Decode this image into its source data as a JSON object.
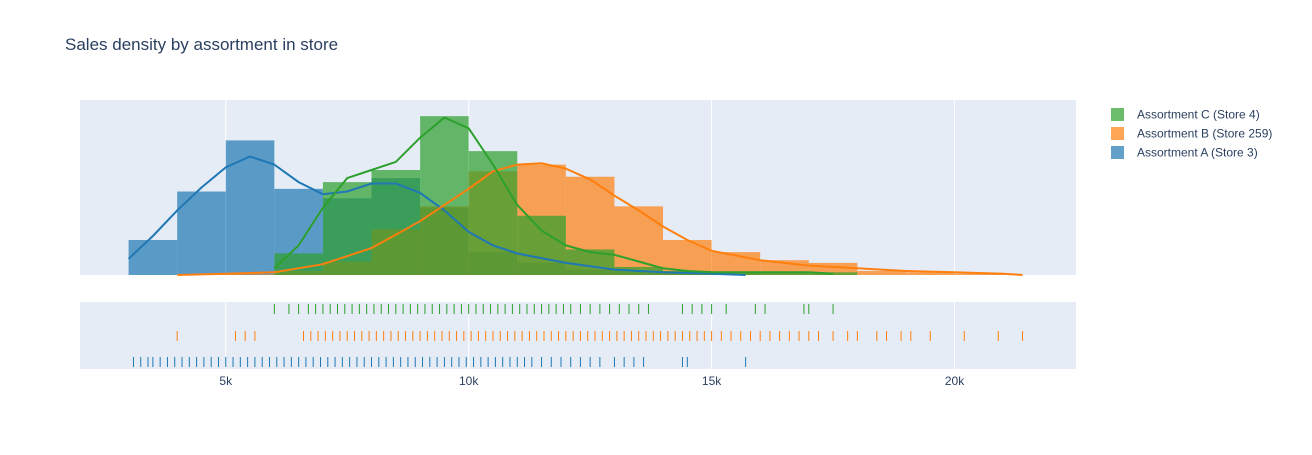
{
  "chart_data": {
    "type": "histogram",
    "title": "Sales density by assortment in store",
    "xlabel": "",
    "ylabel": "",
    "xlim": [
      2000,
      22500
    ],
    "x_ticks": [
      5000,
      10000,
      15000,
      20000
    ],
    "x_tick_labels": [
      "5k",
      "10k",
      "15k",
      "20k"
    ],
    "legend_position": "right",
    "grid": true,
    "plot_bg": "#e5ecf6",
    "series": [
      {
        "name": "Assortment A (Store 3)",
        "color": "#1f77b4",
        "bins": [
          {
            "x0": 3000,
            "x1": 4000,
            "height": 0.26
          },
          {
            "x0": 4000,
            "x1": 5000,
            "height": 0.62
          },
          {
            "x0": 5000,
            "x1": 6000,
            "height": 1.0
          },
          {
            "x0": 6000,
            "x1": 7000,
            "height": 0.64
          },
          {
            "x0": 7000,
            "x1": 8000,
            "height": 0.57
          },
          {
            "x0": 8000,
            "x1": 9000,
            "height": 0.72
          },
          {
            "x0": 9000,
            "x1": 10000,
            "height": 0.5
          },
          {
            "x0": 10000,
            "x1": 11000,
            "height": 0.17
          },
          {
            "x0": 11000,
            "x1": 12000,
            "height": 0.09
          },
          {
            "x0": 12000,
            "x1": 13000,
            "height": 0.04
          },
          {
            "x0": 13000,
            "x1": 14000,
            "height": 0.03
          },
          {
            "x0": 14000,
            "x1": 15000,
            "height": 0.02
          },
          {
            "x0": 15000,
            "x1": 16000,
            "height": 0.01
          }
        ],
        "kde": [
          [
            3000,
            0.12
          ],
          [
            3500,
            0.29
          ],
          [
            4000,
            0.48
          ],
          [
            4500,
            0.65
          ],
          [
            5000,
            0.8
          ],
          [
            5500,
            0.88
          ],
          [
            6000,
            0.82
          ],
          [
            6500,
            0.69
          ],
          [
            7000,
            0.6
          ],
          [
            7500,
            0.62
          ],
          [
            8000,
            0.68
          ],
          [
            8500,
            0.68
          ],
          [
            9000,
            0.61
          ],
          [
            9500,
            0.48
          ],
          [
            10000,
            0.32
          ],
          [
            10500,
            0.22
          ],
          [
            11000,
            0.16
          ],
          [
            12000,
            0.09
          ],
          [
            13000,
            0.04
          ],
          [
            14000,
            0.02
          ],
          [
            15000,
            0.01
          ],
          [
            15700,
            0.0
          ]
        ],
        "rug": [
          3100,
          3250,
          3400,
          3500,
          3650,
          3800,
          3950,
          4100,
          4250,
          4400,
          4550,
          4700,
          4850,
          5000,
          5150,
          5300,
          5450,
          5600,
          5750,
          5900,
          6050,
          6200,
          6350,
          6500,
          6650,
          6800,
          6950,
          7100,
          7250,
          7400,
          7550,
          7700,
          7850,
          8000,
          8150,
          8300,
          8450,
          8600,
          8750,
          8900,
          9050,
          9200,
          9350,
          9500,
          9650,
          9800,
          9950,
          10100,
          10250,
          10400,
          10550,
          10700,
          10850,
          11000,
          11150,
          11300,
          11500,
          11700,
          11900,
          12100,
          12300,
          12500,
          12700,
          13000,
          13200,
          13400,
          13600,
          14400,
          14500,
          15700
        ]
      },
      {
        "name": "Assortment B (Store 259)",
        "color": "#ff7f0e",
        "bins": [
          {
            "x0": 4000,
            "x1": 5000,
            "height": 0.005
          },
          {
            "x0": 5000,
            "x1": 6000,
            "height": 0.005
          },
          {
            "x0": 6000,
            "x1": 7000,
            "height": 0.03
          },
          {
            "x0": 7000,
            "x1": 8000,
            "height": 0.1
          },
          {
            "x0": 8000,
            "x1": 9000,
            "height": 0.34
          },
          {
            "x0": 9000,
            "x1": 10000,
            "height": 0.51
          },
          {
            "x0": 10000,
            "x1": 11000,
            "height": 0.77
          },
          {
            "x0": 11000,
            "x1": 12000,
            "height": 0.82
          },
          {
            "x0": 12000,
            "x1": 13000,
            "height": 0.73
          },
          {
            "x0": 13000,
            "x1": 14000,
            "height": 0.51
          },
          {
            "x0": 14000,
            "x1": 15000,
            "height": 0.26
          },
          {
            "x0": 15000,
            "x1": 16000,
            "height": 0.17
          },
          {
            "x0": 16000,
            "x1": 17000,
            "height": 0.11
          },
          {
            "x0": 17000,
            "x1": 18000,
            "height": 0.09
          },
          {
            "x0": 18000,
            "x1": 19000,
            "height": 0.03
          },
          {
            "x0": 19000,
            "x1": 20000,
            "height": 0.02
          },
          {
            "x0": 20000,
            "x1": 21000,
            "height": 0.01
          }
        ],
        "kde": [
          [
            4000,
            0.0
          ],
          [
            5000,
            0.01
          ],
          [
            6000,
            0.02
          ],
          [
            7000,
            0.08
          ],
          [
            8000,
            0.2
          ],
          [
            9000,
            0.4
          ],
          [
            10000,
            0.64
          ],
          [
            10500,
            0.77
          ],
          [
            11000,
            0.82
          ],
          [
            11500,
            0.83
          ],
          [
            12000,
            0.79
          ],
          [
            12500,
            0.71
          ],
          [
            13000,
            0.59
          ],
          [
            13500,
            0.48
          ],
          [
            14000,
            0.36
          ],
          [
            14500,
            0.26
          ],
          [
            15000,
            0.18
          ],
          [
            16000,
            0.11
          ],
          [
            17000,
            0.07
          ],
          [
            18000,
            0.05
          ],
          [
            19000,
            0.03
          ],
          [
            20000,
            0.02
          ],
          [
            21000,
            0.01
          ],
          [
            21400,
            0.0
          ]
        ],
        "rug": [
          4000,
          5200,
          5400,
          5600,
          6600,
          6750,
          6900,
          7050,
          7200,
          7350,
          7500,
          7650,
          7800,
          7950,
          8100,
          8250,
          8400,
          8550,
          8700,
          8850,
          9000,
          9150,
          9300,
          9450,
          9600,
          9750,
          9900,
          10050,
          10200,
          10350,
          10500,
          10650,
          10800,
          10950,
          11100,
          11250,
          11400,
          11550,
          11700,
          11850,
          12000,
          12150,
          12300,
          12450,
          12600,
          12750,
          12900,
          13050,
          13200,
          13350,
          13500,
          13650,
          13800,
          13950,
          14100,
          14250,
          14400,
          14550,
          14700,
          14850,
          15000,
          15200,
          15400,
          15600,
          15800,
          16000,
          16200,
          16400,
          16600,
          16800,
          17000,
          17200,
          17500,
          17800,
          18000,
          18400,
          18600,
          18900,
          19100,
          19500,
          20200,
          20900,
          21400
        ]
      },
      {
        "name": "Assortment C (Store 4)",
        "color": "#2ca02c",
        "bins": [
          {
            "x0": 6000,
            "x1": 7000,
            "height": 0.16
          },
          {
            "x0": 7000,
            "x1": 8000,
            "height": 0.69
          },
          {
            "x0": 8000,
            "x1": 9000,
            "height": 0.78
          },
          {
            "x0": 9000,
            "x1": 10000,
            "height": 1.18
          },
          {
            "x0": 10000,
            "x1": 11000,
            "height": 0.92
          },
          {
            "x0": 11000,
            "x1": 12000,
            "height": 0.44
          },
          {
            "x0": 12000,
            "x1": 13000,
            "height": 0.19
          },
          {
            "x0": 13000,
            "x1": 14000,
            "height": 0.06
          },
          {
            "x0": 14000,
            "x1": 15000,
            "height": 0.03
          },
          {
            "x0": 15000,
            "x1": 16000,
            "height": 0.02
          },
          {
            "x0": 16000,
            "x1": 17000,
            "height": 0.02
          },
          {
            "x0": 17000,
            "x1": 18000,
            "height": 0.02
          }
        ],
        "kde": [
          [
            6000,
            0.05
          ],
          [
            6500,
            0.22
          ],
          [
            7000,
            0.5
          ],
          [
            7500,
            0.72
          ],
          [
            8000,
            0.78
          ],
          [
            8500,
            0.84
          ],
          [
            9000,
            1.02
          ],
          [
            9500,
            1.17
          ],
          [
            10000,
            1.09
          ],
          [
            10500,
            0.82
          ],
          [
            11000,
            0.52
          ],
          [
            11500,
            0.33
          ],
          [
            12000,
            0.22
          ],
          [
            12500,
            0.17
          ],
          [
            13000,
            0.15
          ],
          [
            13500,
            0.1
          ],
          [
            14000,
            0.05
          ],
          [
            14500,
            0.03
          ],
          [
            15000,
            0.02
          ],
          [
            16000,
            0.02
          ],
          [
            17000,
            0.02
          ],
          [
            17500,
            0.01
          ]
        ],
        "rug": [
          6000,
          6300,
          6500,
          6700,
          6850,
          7000,
          7150,
          7300,
          7450,
          7600,
          7750,
          7900,
          8050,
          8200,
          8350,
          8500,
          8650,
          8800,
          8950,
          9100,
          9250,
          9400,
          9550,
          9700,
          9850,
          10000,
          10150,
          10300,
          10450,
          10600,
          10750,
          10900,
          11050,
          11200,
          11350,
          11500,
          11650,
          11800,
          11950,
          12100,
          12300,
          12500,
          12700,
          12900,
          13100,
          13300,
          13500,
          13700,
          14400,
          14600,
          14800,
          15000,
          15300,
          15900,
          16100,
          16900,
          17000,
          17500
        ]
      }
    ],
    "legend_order": [
      "Assortment C (Store 4)",
      "Assortment B (Store 259)",
      "Assortment A (Store 3)"
    ]
  }
}
